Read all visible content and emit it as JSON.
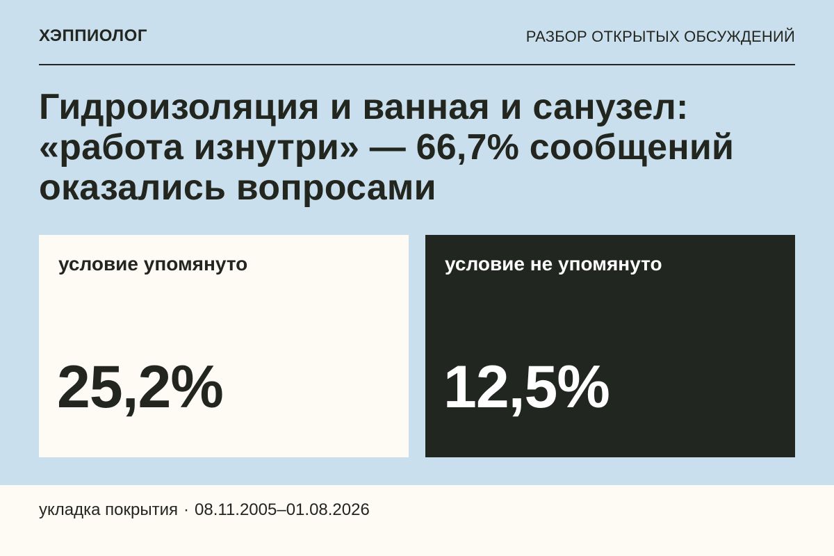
{
  "header": {
    "brand": "ХЭППИОЛОГ",
    "section": "РАЗБОР ОТКРЫТЫХ ОБСУЖДЕНИЙ"
  },
  "headline": {
    "line1": "Гидроизоляция и ванная и санузел:",
    "line2": "«работа изнутри» — 66,7% сообщений",
    "line3": "оказались вопросами"
  },
  "stats": [
    {
      "label": "условие упомянуто",
      "value": "25,2%",
      "theme": "light"
    },
    {
      "label": "условие не упомянуто",
      "value": "12,5%",
      "theme": "dark"
    }
  ],
  "footer": {
    "topic": "укладка покрытия",
    "separator": "·",
    "date_range": "08.11.2005–01.08.2026"
  },
  "colors": {
    "background": "#c9dfed",
    "light_card": "#fdfbf3",
    "dark_card": "#222620",
    "text": "#23261f"
  }
}
